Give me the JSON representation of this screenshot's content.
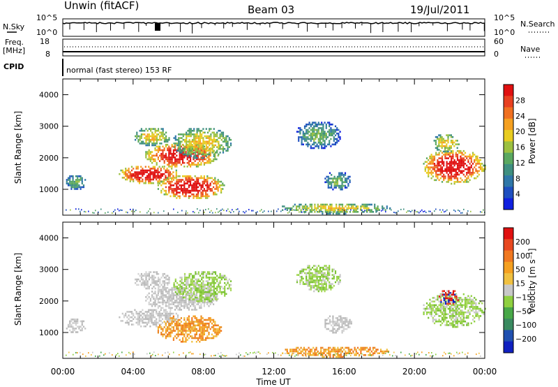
{
  "header": {
    "site": "Unwin (fitACF)",
    "beam": "Beam 03",
    "date": "19/Jul/2011"
  },
  "top_panels": {
    "nsky_label": "N.Sky",
    "nsearch_label": "N.Search",
    "power_ticks_left": [
      "10^5",
      "10^0"
    ],
    "power_ticks_right": [
      "10^5",
      "10^0"
    ],
    "freq_label": "Freq.",
    "freq_unit": "[MHz]",
    "freq_ticks": [
      "18",
      "8"
    ],
    "nave_label": "Nave",
    "nave_ticks": [
      "60",
      "0"
    ],
    "cpid_label": "CPID",
    "cpid_text": "normal (fast stereo) 153 RF"
  },
  "chart_data": [
    {
      "type": "heatmap",
      "name": "power",
      "ylabel": "Slant Range [km]",
      "xlabel": "Time UT",
      "ylim": [
        180,
        4500
      ],
      "xlim": [
        0,
        24
      ],
      "y_ticks": [
        "1000",
        "2000",
        "3000",
        "4000"
      ],
      "x_ticks": [
        "00:00",
        "04:00",
        "08:00",
        "12:00",
        "16:00",
        "20:00",
        "00:00"
      ],
      "colorbar": {
        "label": "Power [dB]",
        "ticks": [
          "4",
          "8",
          "12",
          "16",
          "20",
          "24",
          "28"
        ],
        "colors": [
          "#1020e0",
          "#1e4fc0",
          "#2f77a8",
          "#3f8f80",
          "#5aa860",
          "#9cc040",
          "#e8cc20",
          "#f5a020",
          "#f07020",
          "#e84020",
          "#e01010"
        ]
      },
      "echo_regions": [
        {
          "t": [
            0.1,
            1.3
          ],
          "r": [
            1000,
            1500
          ],
          "level": "low"
        },
        {
          "t": [
            3.1,
            6.6
          ],
          "r": [
            1200,
            1800
          ],
          "level": "high"
        },
        {
          "t": [
            4.6,
            8.8
          ],
          "r": [
            1700,
            2500
          ],
          "level": "high"
        },
        {
          "t": [
            5.3,
            9.2
          ],
          "r": [
            700,
            1500
          ],
          "level": "high"
        },
        {
          "t": [
            4.0,
            6.1
          ],
          "r": [
            2400,
            3000
          ],
          "level": "mid"
        },
        {
          "t": [
            6.2,
            9.6
          ],
          "r": [
            2000,
            3000
          ],
          "level": "mid"
        },
        {
          "t": [
            13.2,
            15.8
          ],
          "r": [
            2300,
            3200
          ],
          "level": "low"
        },
        {
          "t": [
            14.8,
            16.4
          ],
          "r": [
            1000,
            1600
          ],
          "level": "low"
        },
        {
          "t": [
            12.2,
            18.6
          ],
          "r": [
            250,
            600
          ],
          "level": "mid"
        },
        {
          "t": [
            20.4,
            24.0
          ],
          "r": [
            1200,
            2300
          ],
          "level": "high"
        },
        {
          "t": [
            21.0,
            22.6
          ],
          "r": [
            2200,
            2800
          ],
          "level": "mid"
        }
      ]
    },
    {
      "type": "heatmap",
      "name": "velocity",
      "ylabel": "Slant Range [km]",
      "xlabel": "Time UT",
      "ylim": [
        180,
        4500
      ],
      "xlim": [
        0,
        24
      ],
      "y_ticks": [
        "1000",
        "2000",
        "3000",
        "4000"
      ],
      "x_ticks": [
        "00:00",
        "04:00",
        "08:00",
        "12:00",
        "16:00",
        "20:00",
        "00:00"
      ],
      "colorbar": {
        "label": "Velocity [m s⁻¹]",
        "ticks": [
          "200",
          "100",
          "50",
          "15",
          "−15",
          "−50",
          "−100",
          "−200"
        ],
        "colors": [
          "#1020c0",
          "#2050b0",
          "#3a8a60",
          "#48a848",
          "#8fd040",
          "#c8c8c8",
          "#f0c040",
          "#f5a020",
          "#f07820",
          "#e84820",
          "#e01010"
        ]
      },
      "echo_regions": [
        {
          "t": [
            0.1,
            1.3
          ],
          "r": [
            1000,
            1500
          ],
          "level": "grey"
        },
        {
          "t": [
            3.1,
            6.6
          ],
          "r": [
            1200,
            1800
          ],
          "level": "grey"
        },
        {
          "t": [
            4.6,
            8.8
          ],
          "r": [
            1700,
            2500
          ],
          "level": "grey"
        },
        {
          "t": [
            5.3,
            9.0
          ],
          "r": [
            700,
            1600
          ],
          "level": "orange"
        },
        {
          "t": [
            4.0,
            6.1
          ],
          "r": [
            2400,
            3000
          ],
          "level": "grey"
        },
        {
          "t": [
            6.2,
            9.6
          ],
          "r": [
            2000,
            3000
          ],
          "level": "green"
        },
        {
          "t": [
            13.2,
            15.8
          ],
          "r": [
            2300,
            3200
          ],
          "level": "green"
        },
        {
          "t": [
            14.8,
            16.4
          ],
          "r": [
            1000,
            1600
          ],
          "level": "grey"
        },
        {
          "t": [
            12.2,
            18.6
          ],
          "r": [
            250,
            600
          ],
          "level": "orange"
        },
        {
          "t": [
            20.4,
            24.0
          ],
          "r": [
            1200,
            2300
          ],
          "level": "green"
        },
        {
          "t": [
            21.3,
            22.5
          ],
          "r": [
            1900,
            2400
          ],
          "level": "red"
        }
      ]
    }
  ]
}
